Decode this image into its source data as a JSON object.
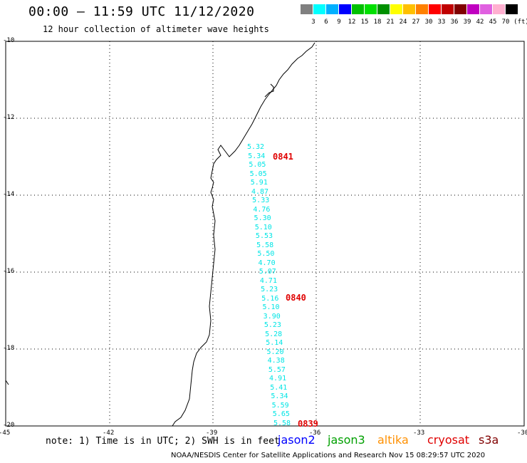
{
  "header": {
    "title": "00:00 — 11:59 UTC 11/12/2020",
    "subtitle": "12 hour collection of altimeter wave heights"
  },
  "scale": {
    "unit": "(ft)",
    "colors": [
      "#808080",
      "#00ffff",
      "#00b0ff",
      "#0000ff",
      "#00c000",
      "#00e000",
      "#009000",
      "#ffff00",
      "#ffc000",
      "#ff8000",
      "#ff0000",
      "#c00000",
      "#800000",
      "#c000c0",
      "#e060e0",
      "#ffb0d0",
      "#000000"
    ],
    "labels": [
      "3",
      "6",
      "9",
      "12",
      "15",
      "18",
      "21",
      "24",
      "27",
      "30",
      "33",
      "36",
      "39",
      "42",
      "45",
      "70"
    ]
  },
  "map": {
    "lat_labels": [
      "-10",
      "-12",
      "-14",
      "-16",
      "-18",
      "-20"
    ],
    "lon_labels": [
      "-45",
      "-42",
      "-39",
      "-36",
      "-33",
      "-30"
    ],
    "swh_values": [
      "5.32",
      "5.34",
      "5.05",
      "5.05",
      "5.91",
      "4.87",
      "5.33",
      "4.76",
      "5.30",
      "5.10",
      "5.53",
      "5.58",
      "5.50",
      "4.70",
      "5.07",
      "4.71",
      "5.23",
      "5.16",
      "5.10",
      "3.90",
      "5.23",
      "5.28",
      "5.14",
      "5.20",
      "4.38",
      "5.57",
      "4.91",
      "5.41",
      "5.34",
      "5.59",
      "5.65",
      "5.58"
    ],
    "pass_labels": [
      "0841",
      "0840",
      "0839"
    ],
    "swh_color": "#00e5e5",
    "pass_color": "#e00000"
  },
  "note": "note: 1) Time is in UTC; 2) SWH is in feet",
  "satellites": [
    {
      "name": "jason2",
      "color": "#0000ff"
    },
    {
      "name": "jason3",
      "color": "#00a000"
    },
    {
      "name": "altika",
      "color": "#ff9000"
    },
    {
      "name": "cryosat",
      "color": "#e00000"
    },
    {
      "name": "s3a",
      "color": "#800000"
    }
  ],
  "footer": "NOAA/NESDIS Center for Satellite Applications and Research   Nov 15 08:29:57 UTC 2020"
}
